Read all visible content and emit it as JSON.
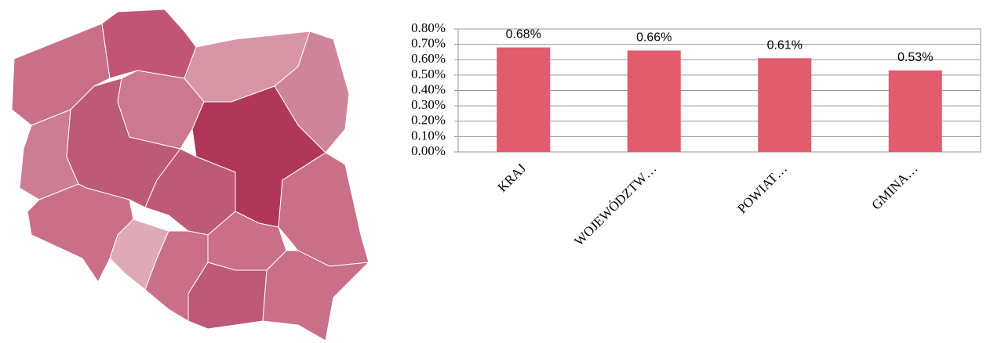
{
  "chart_data": {
    "type": "bar",
    "categories": [
      "KRAJ",
      "WOJEWÓDZTW…",
      "POWIAT…",
      "GMINA…"
    ],
    "values": [
      0.68,
      0.66,
      0.61,
      0.53
    ],
    "value_labels": [
      "0.68%",
      "0.66%",
      "0.61%",
      "0.53%"
    ],
    "color": "#e05c6e",
    "ylim": [
      0,
      0.8
    ],
    "yticks": [
      {
        "value": 0,
        "label": "0.00%"
      },
      {
        "value": 0.1,
        "label": "0.10%"
      },
      {
        "value": 0.2,
        "label": "0.20%"
      },
      {
        "value": 0.3,
        "label": "0.30%"
      },
      {
        "value": 0.4,
        "label": "0.40%"
      },
      {
        "value": 0.5,
        "label": "0.50%"
      },
      {
        "value": 0.6,
        "label": "0.60%"
      },
      {
        "value": 0.7,
        "label": "0.70%"
      },
      {
        "value": 0.8,
        "label": "0.80%"
      }
    ],
    "grid": true
  }
}
